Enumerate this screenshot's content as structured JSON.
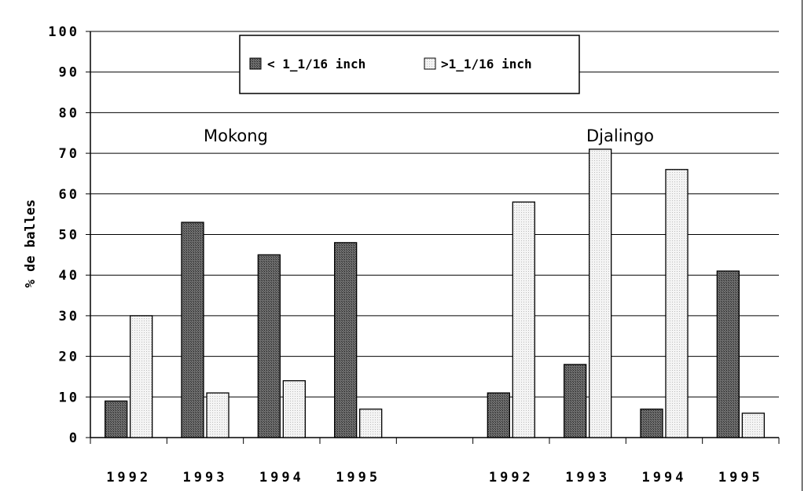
{
  "chart_data": {
    "type": "bar",
    "ylabel": "% de balles",
    "ylim": [
      0,
      100
    ],
    "yticks": [
      "0",
      "10",
      "20",
      "30",
      "40",
      "50",
      "60",
      "70",
      "80",
      "90",
      "100"
    ],
    "grid": true,
    "legend_position": "top-center",
    "groups": [
      {
        "label": "Mokong",
        "categories": [
          "1992",
          "1993",
          "1994",
          "1995"
        ]
      },
      {
        "label": "Djalingo",
        "categories": [
          "1992",
          "1993",
          "1994",
          "1995"
        ]
      }
    ],
    "categories": [
      "1992",
      "1993",
      "1994",
      "1995",
      "",
      "1992",
      "1993",
      "1994",
      "1995"
    ],
    "series": [
      {
        "name": "< 1_1/16 inch",
        "color": "#555555",
        "values": [
          9,
          53,
          45,
          48,
          null,
          11,
          18,
          7,
          41
        ]
      },
      {
        "name": ">1_1/16 inch",
        "color": "#eeeeee",
        "values": [
          30,
          11,
          14,
          7,
          null,
          58,
          71,
          66,
          6
        ]
      }
    ]
  }
}
